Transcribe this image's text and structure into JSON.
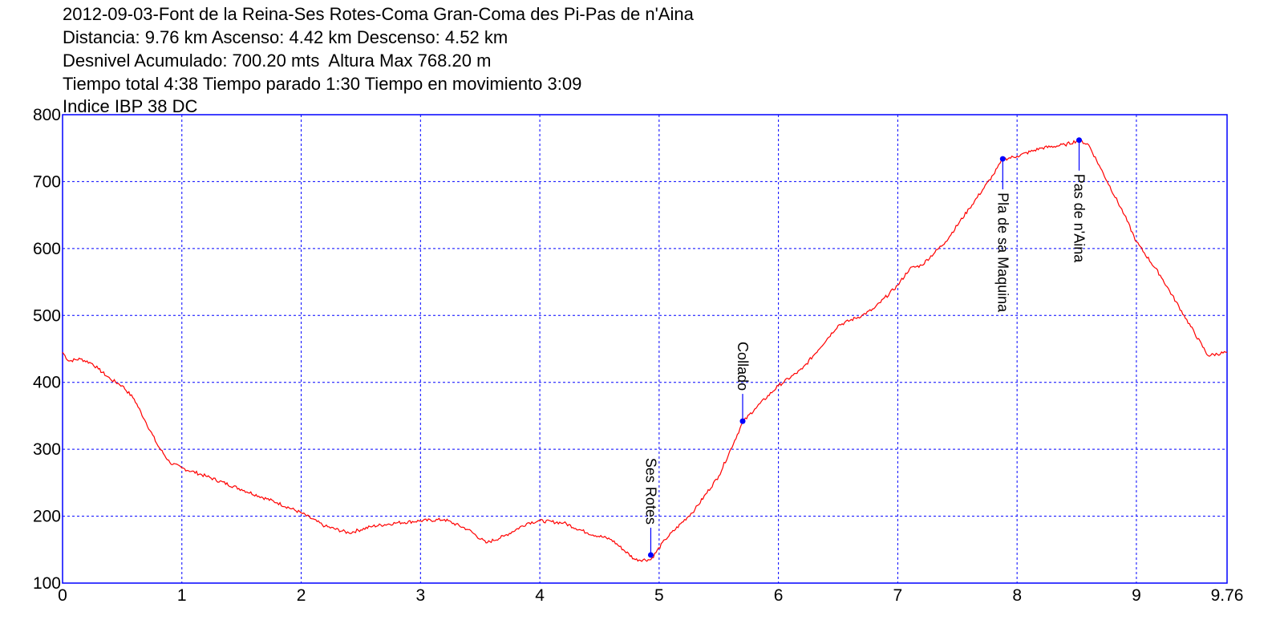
{
  "header": {
    "line1": "2012-09-03-Font de la Reina-Ses Rotes-Coma Gran-Coma des Pi-Pas de n'Aina",
    "line2": "Distancia: 9.76 km Ascenso: 4.42 km Descenso: 4.52 km",
    "line3": "Desnivel Acumulado: 700.20 mts  Altura Max 768.20 m",
    "line4": "Tiempo total 4:38 Tiempo parado 1:30 Tiempo en movimiento 3:09",
    "line5": "Indice IBP 38 DC"
  },
  "chart_data": {
    "type": "line",
    "xlim": [
      0,
      9.76
    ],
    "ylim": [
      100,
      800
    ],
    "x_ticks": [
      "0",
      "1",
      "2",
      "3",
      "4",
      "5",
      "6",
      "7",
      "8",
      "9",
      "9.76"
    ],
    "x_tick_values": [
      0,
      1,
      2,
      3,
      4,
      5,
      6,
      7,
      8,
      9,
      9.76
    ],
    "y_ticks": [
      "100",
      "200",
      "300",
      "400",
      "500",
      "600",
      "700",
      "800"
    ],
    "y_tick_values": [
      100,
      200,
      300,
      400,
      500,
      600,
      700,
      800
    ],
    "grid": true,
    "colors": {
      "line": "#ff0000",
      "grid": "#0000ff",
      "frame": "#0000ff",
      "marker": "#0000ff"
    },
    "series": [
      {
        "x": [
          0,
          0.05,
          0.15,
          0.25,
          0.3,
          0.4,
          0.5,
          0.6,
          0.7,
          0.8,
          0.9,
          1.0,
          1.2,
          1.5,
          1.8,
          2.0,
          2.2,
          2.4,
          2.6,
          2.8,
          3.0,
          3.2,
          3.4,
          3.55,
          3.7,
          3.9,
          4.0,
          4.2,
          4.4,
          4.6,
          4.8,
          4.93,
          5.05,
          5.3,
          5.5,
          5.7,
          5.8,
          6.0,
          6.2,
          6.5,
          6.7,
          6.8,
          7.0,
          7.1,
          7.2,
          7.4,
          7.6,
          7.8,
          7.88,
          8.0,
          8.2,
          8.4,
          8.52,
          8.6,
          8.7,
          8.9,
          9.0,
          9.2,
          9.4,
          9.6,
          9.76
        ],
        "y": [
          445,
          432,
          435,
          428,
          420,
          405,
          395,
          375,
          340,
          305,
          280,
          272,
          260,
          240,
          220,
          205,
          185,
          175,
          185,
          190,
          193,
          195,
          180,
          160,
          170,
          190,
          193,
          190,
          175,
          165,
          135,
          135,
          165,
          210,
          260,
          340,
          360,
          395,
          420,
          485,
          500,
          510,
          545,
          570,
          575,
          610,
          660,
          710,
          733,
          738,
          750,
          755,
          762,
          755,
          720,
          650,
          610,
          560,
          500,
          440,
          445
        ]
      }
    ],
    "waypoints": [
      {
        "label": "Ses Rotes",
        "x": 4.93,
        "y": 142
      },
      {
        "label": "Collado",
        "x": 5.7,
        "y": 342
      },
      {
        "label": "Pla de sa Maquina",
        "x": 7.88,
        "y": 734
      },
      {
        "label": "Pas de n'Aina",
        "x": 8.52,
        "y": 762
      }
    ]
  }
}
